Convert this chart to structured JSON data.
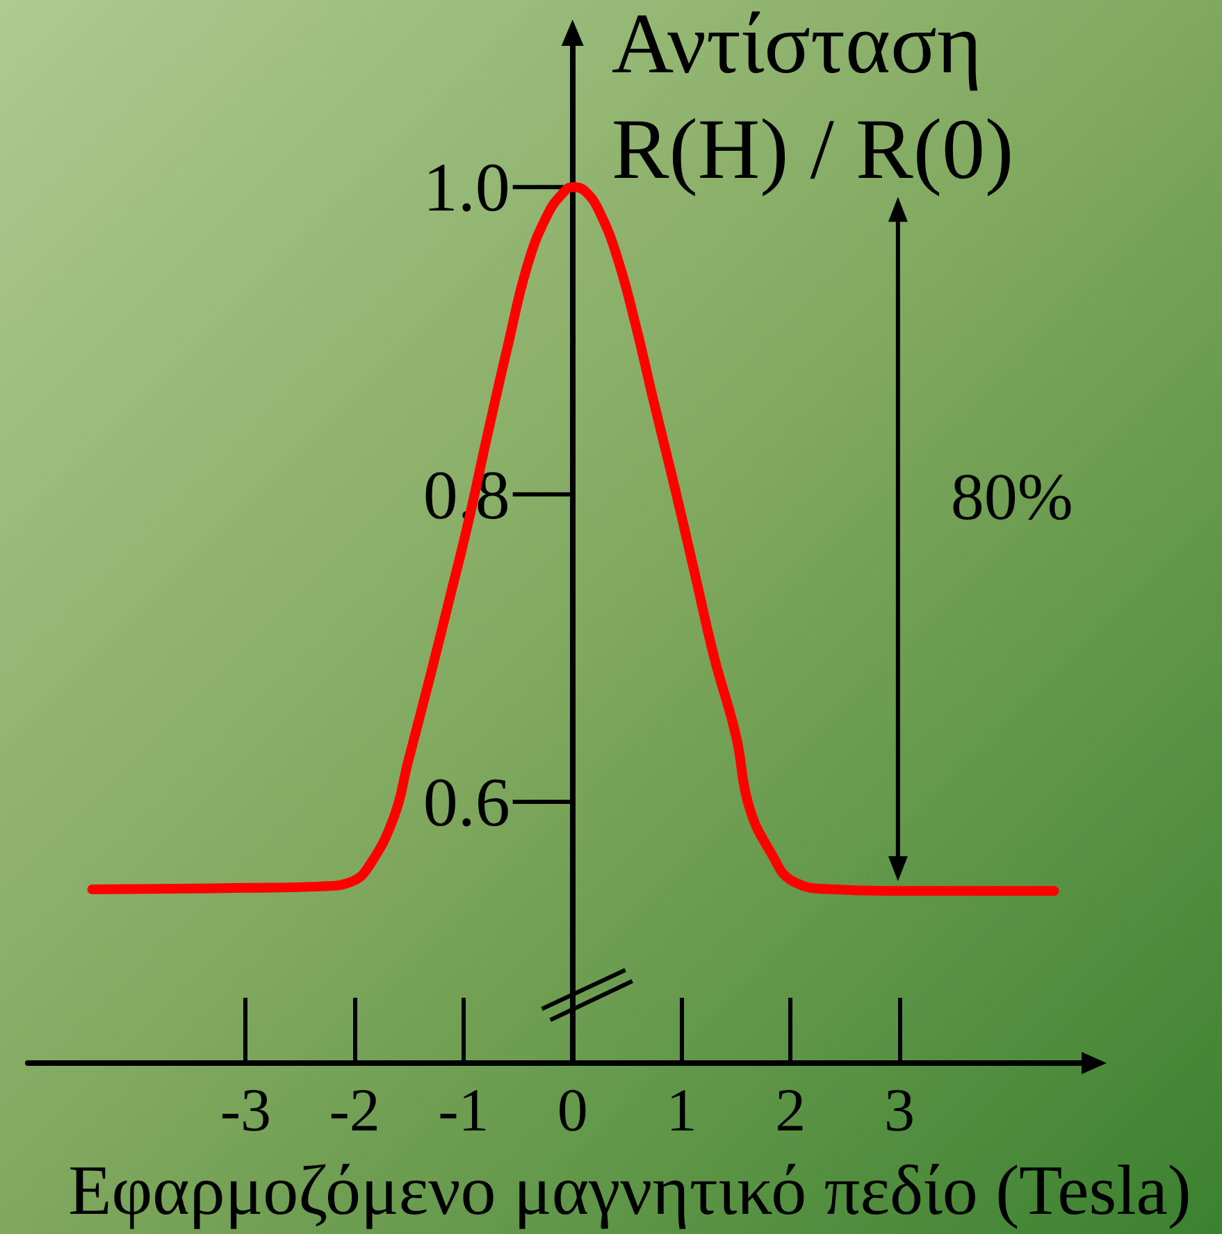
{
  "chart_data": {
    "type": "line",
    "xlabel": "Εφαρμοζόμενο μαγνητικό πεδίο (Tesla)",
    "ylabel": "Αντίσταση\nR(H) / R(0)",
    "x": [
      -4.41,
      -3.0,
      -2.3,
      -2.03,
      -1.87,
      -1.64,
      -1.51,
      -1.32,
      -1.14,
      -0.96,
      -0.78,
      -0.59,
      -0.41,
      -0.23,
      -0.09,
      0,
      0.12,
      0.26,
      0.42,
      0.58,
      0.75,
      0.95,
      1.13,
      1.3,
      1.5,
      1.62,
      1.82,
      2.03,
      2.4,
      3.0,
      4.42
    ],
    "series": [
      {
        "color": "#ff0000",
        "values": [
          0.543,
          0.544,
          0.545,
          0.548,
          0.558,
          0.59,
          0.626,
          0.678,
          0.729,
          0.781,
          0.839,
          0.898,
          0.95,
          0.982,
          0.996,
          1.0,
          0.997,
          0.982,
          0.952,
          0.91,
          0.859,
          0.801,
          0.746,
          0.694,
          0.643,
          0.597,
          0.567,
          0.548,
          0.543,
          0.542,
          0.542
        ]
      }
    ],
    "xlim": [
      -5,
      4.8
    ],
    "ylim": [
      0.43,
      1.1
    ],
    "xticks": [
      -3,
      -2,
      -1,
      0,
      1,
      2,
      3
    ],
    "yticks": [
      0.6,
      0.8,
      {
        "value": 1.0,
        "label": "1.0"
      }
    ],
    "annotations": [
      "80%"
    ]
  }
}
